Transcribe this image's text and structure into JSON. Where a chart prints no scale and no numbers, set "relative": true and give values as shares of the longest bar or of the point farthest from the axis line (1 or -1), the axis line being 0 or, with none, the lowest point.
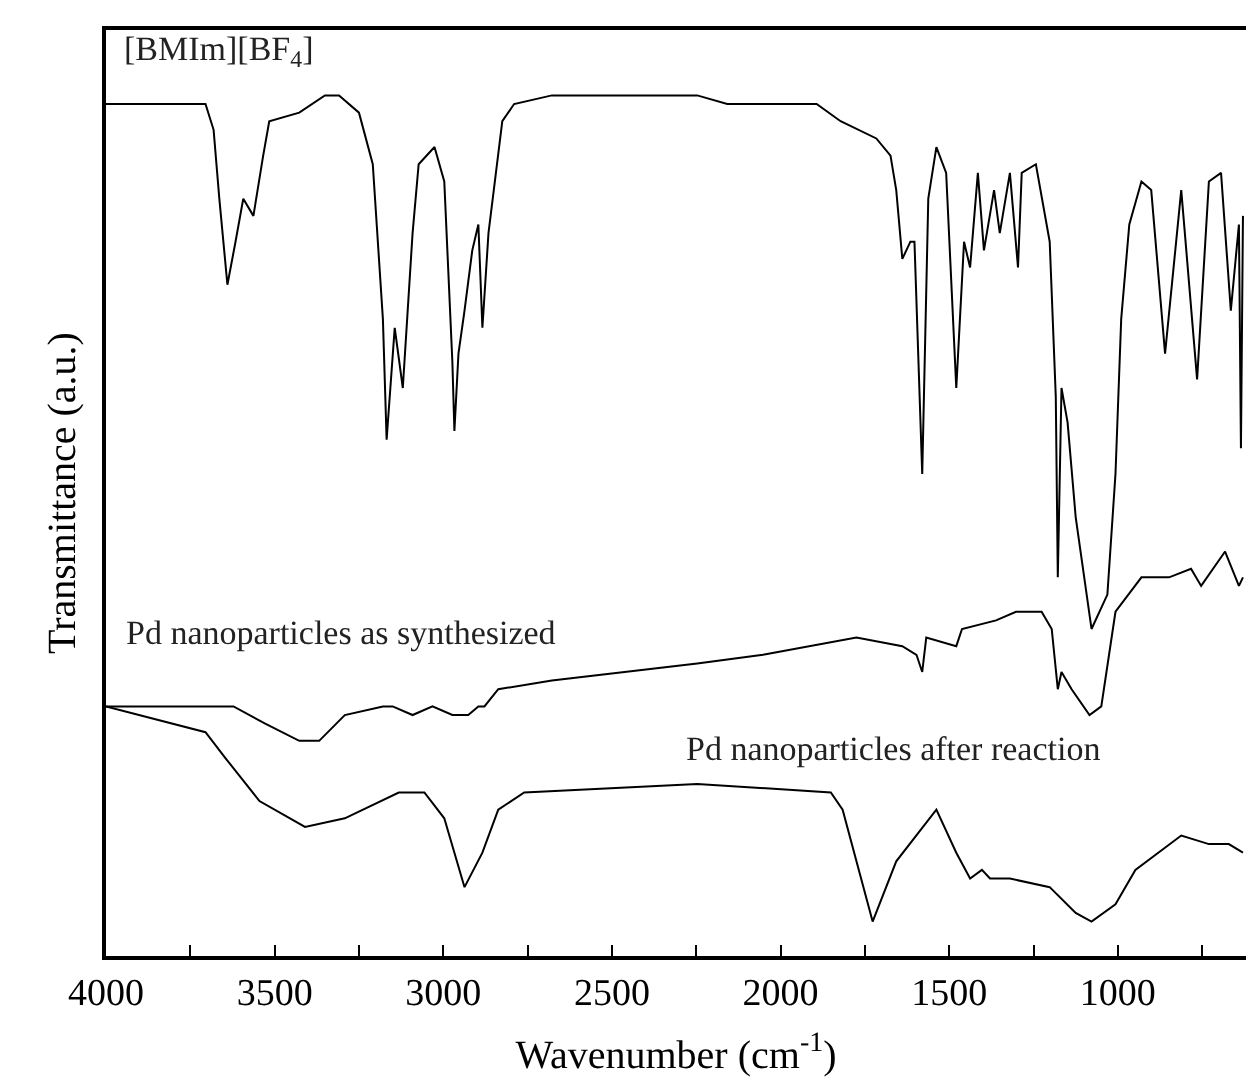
{
  "chart_data": {
    "type": "line",
    "relative": true,
    "xlabel": "Wavenumber (cm$^{-1}$)",
    "ylabel": "Transmittance (a.u.)",
    "xlim": [
      4000,
      620
    ],
    "xticks": [
      4000,
      {
        "value": 3750,
        "label": null
      },
      3500,
      {
        "value": 3250,
        "label": null
      },
      3000,
      {
        "value": 2750,
        "label": null
      },
      2500,
      {
        "value": 2250,
        "label": null
      },
      2000,
      {
        "value": 1750,
        "label": null
      },
      1500,
      {
        "value": 1250,
        "label": null
      },
      1000,
      {
        "value": 750,
        "label": null
      }
    ],
    "legend": false,
    "marker": "none",
    "line_style": "solid",
    "series": [
      {
        "name": "[BMIm][BF$_{4}$]",
        "color": "#000000",
        "x": [
          4000,
          3705,
          3681,
          3664,
          3640,
          3616,
          3593,
          3563,
          3534,
          3516,
          3427,
          3351,
          3309,
          3250,
          3209,
          3179,
          3168,
          3144,
          3120,
          3091,
          3073,
          3026,
          2997,
          2973,
          2967,
          2955,
          2937,
          2914,
          2896,
          2884,
          2866,
          2825,
          2790,
          2678,
          2483,
          2247,
          2158,
          1893,
          1822,
          1716,
          1674,
          1657,
          1639,
          1615,
          1603,
          1580,
          1562,
          1538,
          1509,
          1479,
          1456,
          1438,
          1415,
          1397,
          1367,
          1350,
          1320,
          1296,
          1285,
          1243,
          1202,
          1184,
          1178,
          1167,
          1149,
          1125,
          1078,
          1031,
          1007,
          990,
          966,
          930,
          901,
          860,
          812,
          765,
          730,
          694,
          665,
          641,
          635,
          629
        ],
        "values": [
          0.99,
          0.99,
          0.96,
          0.88,
          0.78,
          0.83,
          0.88,
          0.86,
          0.93,
          0.97,
          0.98,
          1.0,
          1.0,
          0.98,
          0.92,
          0.74,
          0.6,
          0.73,
          0.66,
          0.84,
          0.92,
          0.94,
          0.9,
          0.69,
          0.61,
          0.7,
          0.75,
          0.82,
          0.85,
          0.73,
          0.84,
          0.97,
          0.99,
          1.0,
          1.0,
          1.0,
          0.99,
          0.99,
          0.97,
          0.95,
          0.93,
          0.89,
          0.81,
          0.83,
          0.83,
          0.56,
          0.88,
          0.94,
          0.91,
          0.66,
          0.83,
          0.8,
          0.91,
          0.82,
          0.89,
          0.84,
          0.91,
          0.8,
          0.91,
          0.92,
          0.83,
          0.65,
          0.44,
          0.66,
          0.62,
          0.51,
          0.38,
          0.42,
          0.56,
          0.74,
          0.85,
          0.9,
          0.89,
          0.7,
          0.89,
          0.67,
          0.9,
          0.91,
          0.75,
          0.85,
          0.59,
          0.86
        ]
      },
      {
        "name": "Pd nanoparticles as synthesized",
        "color": "#000000",
        "x": [
          4000,
          3622,
          3528,
          3427,
          3368,
          3292,
          3179,
          3150,
          3091,
          3032,
          2973,
          2926,
          2896,
          2878,
          2837,
          2678,
          2247,
          2052,
          1775,
          1639,
          1597,
          1580,
          1568,
          1479,
          1462,
          1361,
          1302,
          1226,
          1196,
          1178,
          1167,
          1137,
          1084,
          1049,
          1007,
          930,
          848,
          783,
          753,
          682,
          641,
          629
        ],
        "values": [
          0.29,
          0.29,
          0.27,
          0.25,
          0.25,
          0.28,
          0.29,
          0.29,
          0.28,
          0.29,
          0.28,
          0.28,
          0.29,
          0.29,
          0.31,
          0.32,
          0.34,
          0.35,
          0.37,
          0.36,
          0.35,
          0.33,
          0.37,
          0.36,
          0.38,
          0.39,
          0.4,
          0.4,
          0.38,
          0.31,
          0.33,
          0.31,
          0.28,
          0.29,
          0.4,
          0.44,
          0.44,
          0.45,
          0.43,
          0.47,
          0.43,
          0.44
        ]
      },
      {
        "name": "Pd nanoparticles after reaction",
        "color": "#000000",
        "x": [
          4000,
          3705,
          3646,
          3545,
          3410,
          3292,
          3132,
          3056,
          2997,
          2937,
          2884,
          2837,
          2760,
          2247,
          1851,
          1816,
          1727,
          1657,
          1538,
          1479,
          1438,
          1403,
          1379,
          1320,
          1202,
          1125,
          1078,
          1007,
          948,
          812,
          730,
          671,
          629
        ],
        "values": [
          0.29,
          0.26,
          0.23,
          0.18,
          0.15,
          0.16,
          0.19,
          0.19,
          0.16,
          0.08,
          0.12,
          0.17,
          0.19,
          0.2,
          0.19,
          0.17,
          0.04,
          0.11,
          0.17,
          0.12,
          0.09,
          0.1,
          0.09,
          0.09,
          0.08,
          0.05,
          0.04,
          0.06,
          0.1,
          0.14,
          0.13,
          0.13,
          0.12
        ]
      }
    ]
  }
}
